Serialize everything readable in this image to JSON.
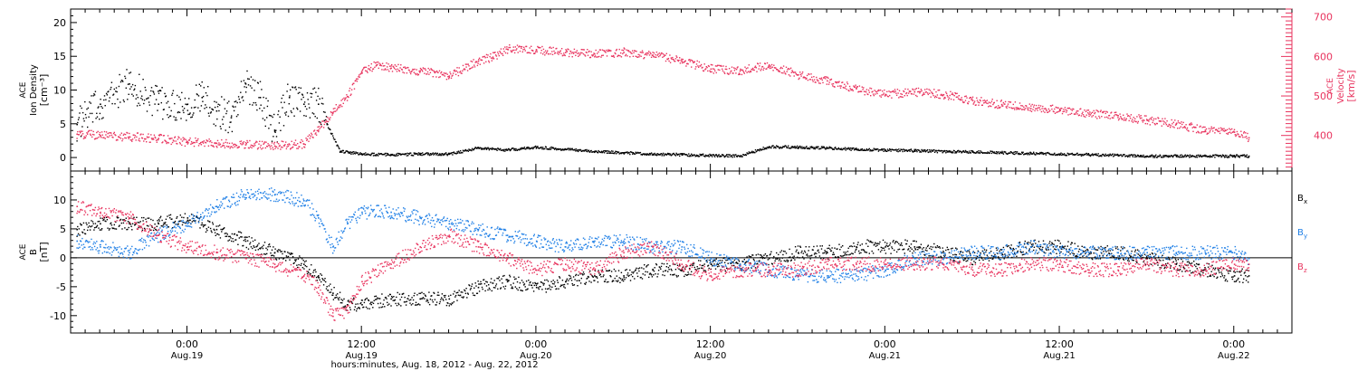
{
  "chart_data": [
    {
      "type": "scatter",
      "panel": "top",
      "ylabel_lines": [
        "ACE",
        "Ion Density",
        "[cm⁻³]"
      ],
      "y2label_lines": [
        "ACE",
        "Velocity",
        "[km/s]"
      ],
      "ylim": [
        -2,
        22
      ],
      "y2lim": [
        310,
        720
      ],
      "yticks": [
        0,
        5,
        10,
        15,
        20
      ],
      "y2ticks": [
        400,
        500,
        600,
        700
      ],
      "colors": {
        "density": "#000000",
        "velocity": "#e8335e"
      },
      "series": [
        {
          "axis": "left",
          "color": "#000000",
          "x": [
            -7.6,
            -6,
            -4,
            -2,
            0,
            1,
            2,
            3,
            4,
            5,
            6,
            7,
            8,
            9,
            9.6,
            10.5,
            12,
            14,
            16,
            18,
            20,
            22,
            24,
            26,
            28,
            30,
            32,
            34,
            36,
            38,
            40,
            42,
            44,
            46,
            48,
            50,
            52,
            54,
            56,
            58,
            60,
            62,
            64,
            66,
            68,
            70,
            72,
            73
          ],
          "y": [
            5,
            8,
            11,
            8,
            8,
            9,
            7,
            6,
            11,
            9,
            4,
            9,
            8,
            8,
            5,
            1,
            0.6,
            0.5,
            0.6,
            0.6,
            1.5,
            1.2,
            1.6,
            1.3,
            1.0,
            0.8,
            0.6,
            0.5,
            0.4,
            0.3,
            1.7,
            1.6,
            1.5,
            1.3,
            1.2,
            1.1,
            1.0,
            0.9,
            0.8,
            0.7,
            0.6,
            0.5,
            0.4,
            0.3,
            0.3,
            0.3,
            0.3,
            0.3
          ]
        },
        {
          "axis": "right",
          "color": "#e8335e",
          "x": [
            -7.6,
            -6,
            -4,
            -2,
            0,
            2,
            4,
            6,
            8,
            9,
            10,
            11,
            12,
            13,
            14,
            16,
            18,
            20,
            21,
            22,
            24,
            26,
            28,
            30,
            32,
            34,
            36,
            38,
            40,
            42,
            44,
            46,
            48,
            50,
            52,
            54,
            56,
            58,
            60,
            62,
            64,
            66,
            68,
            70,
            72,
            73
          ],
          "y": [
            405,
            402,
            398,
            394,
            385,
            382,
            378,
            375,
            380,
            415,
            460,
            500,
            560,
            580,
            572,
            565,
            552,
            590,
            600,
            620,
            618,
            612,
            608,
            612,
            605,
            590,
            570,
            565,
            580,
            555,
            540,
            520,
            505,
            512,
            505,
            490,
            480,
            470,
            468,
            456,
            452,
            440,
            430,
            415,
            410,
            396
          ]
        }
      ]
    },
    {
      "type": "scatter",
      "panel": "bottom",
      "ylabel_lines": [
        "ACE",
        "B",
        "[nT]"
      ],
      "ylim": [
        -13,
        15
      ],
      "yticks": [
        -10,
        -5,
        0,
        5,
        10
      ],
      "legend": [
        {
          "label": "B",
          "sub": "x",
          "color": "#000000"
        },
        {
          "label": "B",
          "sub": "y",
          "color": "#1f7fe6"
        },
        {
          "label": "B",
          "sub": "z",
          "color": "#e8335e"
        }
      ],
      "series": [
        {
          "name": "Bx",
          "color": "#000000",
          "x": [
            -7.6,
            -6,
            -4,
            -2,
            0,
            2,
            4,
            6,
            8,
            9,
            10,
            11,
            12,
            14,
            16,
            18,
            20,
            22,
            24,
            26,
            28,
            30,
            32,
            34,
            36,
            38,
            40,
            42,
            44,
            46,
            48,
            50,
            52,
            54,
            56,
            58,
            60,
            62,
            64,
            66,
            68,
            70,
            72,
            73
          ],
          "y": [
            5,
            6,
            6,
            6,
            7,
            5,
            3,
            1,
            -1,
            -3,
            -6,
            -8,
            -8,
            -7,
            -7,
            -7,
            -5,
            -4,
            -5,
            -4,
            -3,
            -3,
            -2,
            -2,
            -1,
            -1,
            0,
            1,
            1,
            2,
            2,
            2,
            1,
            0,
            1,
            2,
            2,
            1,
            1,
            0,
            -1,
            -2,
            -3,
            -3
          ]
        },
        {
          "name": "By",
          "color": "#1f7fe6",
          "x": [
            -7.6,
            -6,
            -4,
            -2,
            0,
            2,
            4,
            6,
            8,
            9,
            10,
            11,
            12,
            14,
            16,
            18,
            20,
            22,
            24,
            26,
            28,
            30,
            32,
            34,
            36,
            38,
            40,
            42,
            44,
            46,
            48,
            50,
            52,
            54,
            56,
            58,
            60,
            62,
            64,
            66,
            68,
            70,
            72,
            73
          ],
          "y": [
            3,
            2,
            1,
            4,
            6,
            9,
            11,
            11,
            10,
            7,
            2,
            6,
            8,
            8,
            7,
            6,
            5,
            4,
            3,
            2,
            3,
            3,
            2,
            2,
            0,
            -1,
            -2,
            -3,
            -3,
            -3,
            -2,
            0,
            0,
            1,
            1,
            2,
            1,
            1,
            1,
            1,
            1,
            1,
            1,
            0
          ]
        },
        {
          "name": "Bz",
          "color": "#e8335e",
          "x": [
            -7.6,
            -6,
            -4,
            -2,
            0,
            2,
            4,
            6,
            8,
            9,
            10,
            11,
            12,
            14,
            16,
            18,
            20,
            22,
            24,
            26,
            28,
            30,
            32,
            34,
            36,
            38,
            40,
            42,
            44,
            46,
            48,
            50,
            52,
            54,
            56,
            58,
            60,
            62,
            64,
            66,
            68,
            70,
            72,
            73
          ],
          "y": [
            9,
            8,
            7,
            4,
            2,
            1,
            0,
            -1,
            -3,
            -5,
            -10,
            -9,
            -4,
            -1,
            2,
            4,
            2,
            0,
            -2,
            -1,
            -2,
            1,
            2,
            -1,
            -3,
            -2,
            -2,
            -2,
            -1,
            -1,
            -1,
            -1,
            -1,
            -2,
            -2,
            -1,
            -1,
            -2,
            -2,
            -1,
            -2,
            -2,
            -1,
            -1
          ]
        }
      ]
    }
  ],
  "xaxis": {
    "xlim": [
      -8,
      76
    ],
    "xlabel": "hours:minutes, Aug. 18, 2012 - Aug. 22, 2012",
    "ticks": [
      {
        "x": 0,
        "time": "0:00",
        "date": "Aug.19"
      },
      {
        "x": 12,
        "time": "12:00",
        "date": "Aug.19"
      },
      {
        "x": 24,
        "time": "0:00",
        "date": "Aug.20"
      },
      {
        "x": 36,
        "time": "12:00",
        "date": "Aug.20"
      },
      {
        "x": 48,
        "time": "0:00",
        "date": "Aug.21"
      },
      {
        "x": 60,
        "time": "12:00",
        "date": "Aug.21"
      },
      {
        "x": 72,
        "time": "0:00",
        "date": "Aug.22"
      }
    ]
  }
}
